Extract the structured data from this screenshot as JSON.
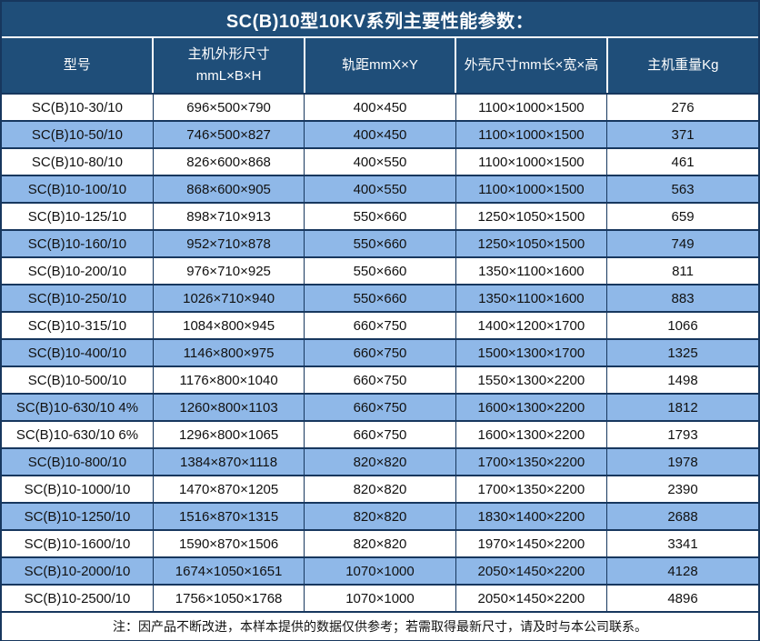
{
  "title": "SC(B)10型10KV系列主要性能参数：",
  "table": {
    "columns": [
      "型号",
      "主机外形尺寸\nmmL×B×H",
      "轨距mmX×Y",
      "外壳尺寸mm长×宽×高",
      "主机重量Kg"
    ],
    "rows": [
      [
        "SC(B)10-30/10",
        "696×500×790",
        "400×450",
        "1100×1000×1500",
        "276"
      ],
      [
        "SC(B)10-50/10",
        "746×500×827",
        "400×450",
        "1100×1000×1500",
        "371"
      ],
      [
        "SC(B)10-80/10",
        "826×600×868",
        "400×550",
        "1100×1000×1500",
        "461"
      ],
      [
        "SC(B)10-100/10",
        "868×600×905",
        "400×550",
        "1100×1000×1500",
        "563"
      ],
      [
        "SC(B)10-125/10",
        "898×710×913",
        "550×660",
        "1250×1050×1500",
        "659"
      ],
      [
        "SC(B)10-160/10",
        "952×710×878",
        "550×660",
        "1250×1050×1500",
        "749"
      ],
      [
        "SC(B)10-200/10",
        "976×710×925",
        "550×660",
        "1350×1100×1600",
        "811"
      ],
      [
        "SC(B)10-250/10",
        "1026×710×940",
        "550×660",
        "1350×1100×1600",
        "883"
      ],
      [
        "SC(B)10-315/10",
        "1084×800×945",
        "660×750",
        "1400×1200×1700",
        "1066"
      ],
      [
        "SC(B)10-400/10",
        "1146×800×975",
        "660×750",
        "1500×1300×1700",
        "1325"
      ],
      [
        "SC(B)10-500/10",
        "1176×800×1040",
        "660×750",
        "1550×1300×2200",
        "1498"
      ],
      [
        "SC(B)10-630/10 4%",
        "1260×800×1103",
        "660×750",
        "1600×1300×2200",
        "1812"
      ],
      [
        "SC(B)10-630/10 6%",
        "1296×800×1065",
        "660×750",
        "1600×1300×2200",
        "1793"
      ],
      [
        "SC(B)10-800/10",
        "1384×870×1118",
        "820×820",
        "1700×1350×2200",
        "1978"
      ],
      [
        "SC(B)10-1000/10",
        "1470×870×1205",
        "820×820",
        "1700×1350×2200",
        "2390"
      ],
      [
        "SC(B)10-1250/10",
        "1516×870×1315",
        "820×820",
        "1830×1400×2200",
        "2688"
      ],
      [
        "SC(B)10-1600/10",
        "1590×870×1506",
        "820×820",
        "1970×1450×2200",
        "3341"
      ],
      [
        "SC(B)10-2000/10",
        "1674×1050×1651",
        "1070×1000",
        "2050×1450×2200",
        "4128"
      ],
      [
        "SC(B)10-2500/10",
        "1756×1050×1768",
        "1070×1000",
        "2050×1450×2200",
        "4896"
      ]
    ]
  },
  "note": "注：因产品不断改进，本样本提供的数据仅供参考；若需取得最新尺寸，请及时与本公司联系。",
  "colors": {
    "header_bg": "#1f4e79",
    "border": "#17375e",
    "alt_row_bg": "#8fb8e8",
    "header_text": "#ffffff",
    "body_text": "#111111"
  }
}
